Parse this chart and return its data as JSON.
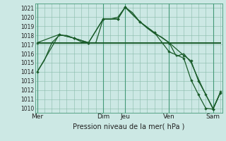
{
  "xlabel": "Pression niveau de la mer( hPa )",
  "bg_color": "#cce8e4",
  "grid_color": "#88bbaa",
  "grid_color_major": "#449977",
  "line_color": "#1a5c2a",
  "ylim": [
    1009.5,
    1021.5
  ],
  "yticks": [
    1010,
    1011,
    1012,
    1013,
    1014,
    1015,
    1016,
    1017,
    1018,
    1019,
    1020,
    1021
  ],
  "day_labels": [
    "Mer",
    "Dim",
    "Jeu",
    "Ven",
    "Sam"
  ],
  "day_positions": [
    0,
    9,
    12,
    18,
    24
  ],
  "xlim": [
    -0.3,
    25.3
  ],
  "series1_x": [
    0,
    1,
    2,
    3,
    4,
    5,
    6,
    7,
    8,
    9,
    10,
    11,
    12,
    13,
    14,
    15,
    16,
    17,
    18,
    19,
    20,
    21,
    22,
    23,
    24,
    25
  ],
  "series1_y": [
    1014.0,
    1015.3,
    1017.2,
    1018.0,
    1018.0,
    1017.7,
    1017.3,
    1017.2,
    1017.2,
    1019.8,
    1019.8,
    1020.0,
    1021.1,
    1020.5,
    1019.5,
    1018.8,
    1018.2,
    1017.8,
    1017.2,
    1015.7,
    1016.0,
    1015.0,
    1013.2,
    1011.5,
    1010.0,
    1011.7
  ],
  "series2_x": [
    0,
    3,
    5,
    7,
    9,
    11,
    12,
    14,
    16,
    18,
    20,
    21,
    22,
    23,
    24,
    25
  ],
  "series2_y": [
    1017.2,
    1018.1,
    1017.7,
    1017.2,
    1019.8,
    1019.8,
    1021.1,
    1019.5,
    1018.3,
    1017.2,
    1015.8,
    1015.2,
    1013.0,
    1011.5,
    1009.9,
    1011.7
  ],
  "series3_x": [
    0,
    25
  ],
  "series3_y": [
    1017.2,
    1017.2
  ],
  "series4_x": [
    0,
    3,
    5,
    7,
    9,
    11,
    12,
    14,
    16,
    18,
    20,
    21,
    22,
    23,
    24,
    25
  ],
  "series4_y": [
    1014.0,
    1018.1,
    1017.7,
    1017.2,
    1019.8,
    1019.8,
    1021.1,
    1019.5,
    1018.3,
    1016.2,
    1015.5,
    1013.1,
    1011.5,
    1010.0,
    1009.9,
    1011.8
  ],
  "xlabel_fontsize": 7,
  "ytick_fontsize": 5.5,
  "xtick_fontsize": 6.5
}
